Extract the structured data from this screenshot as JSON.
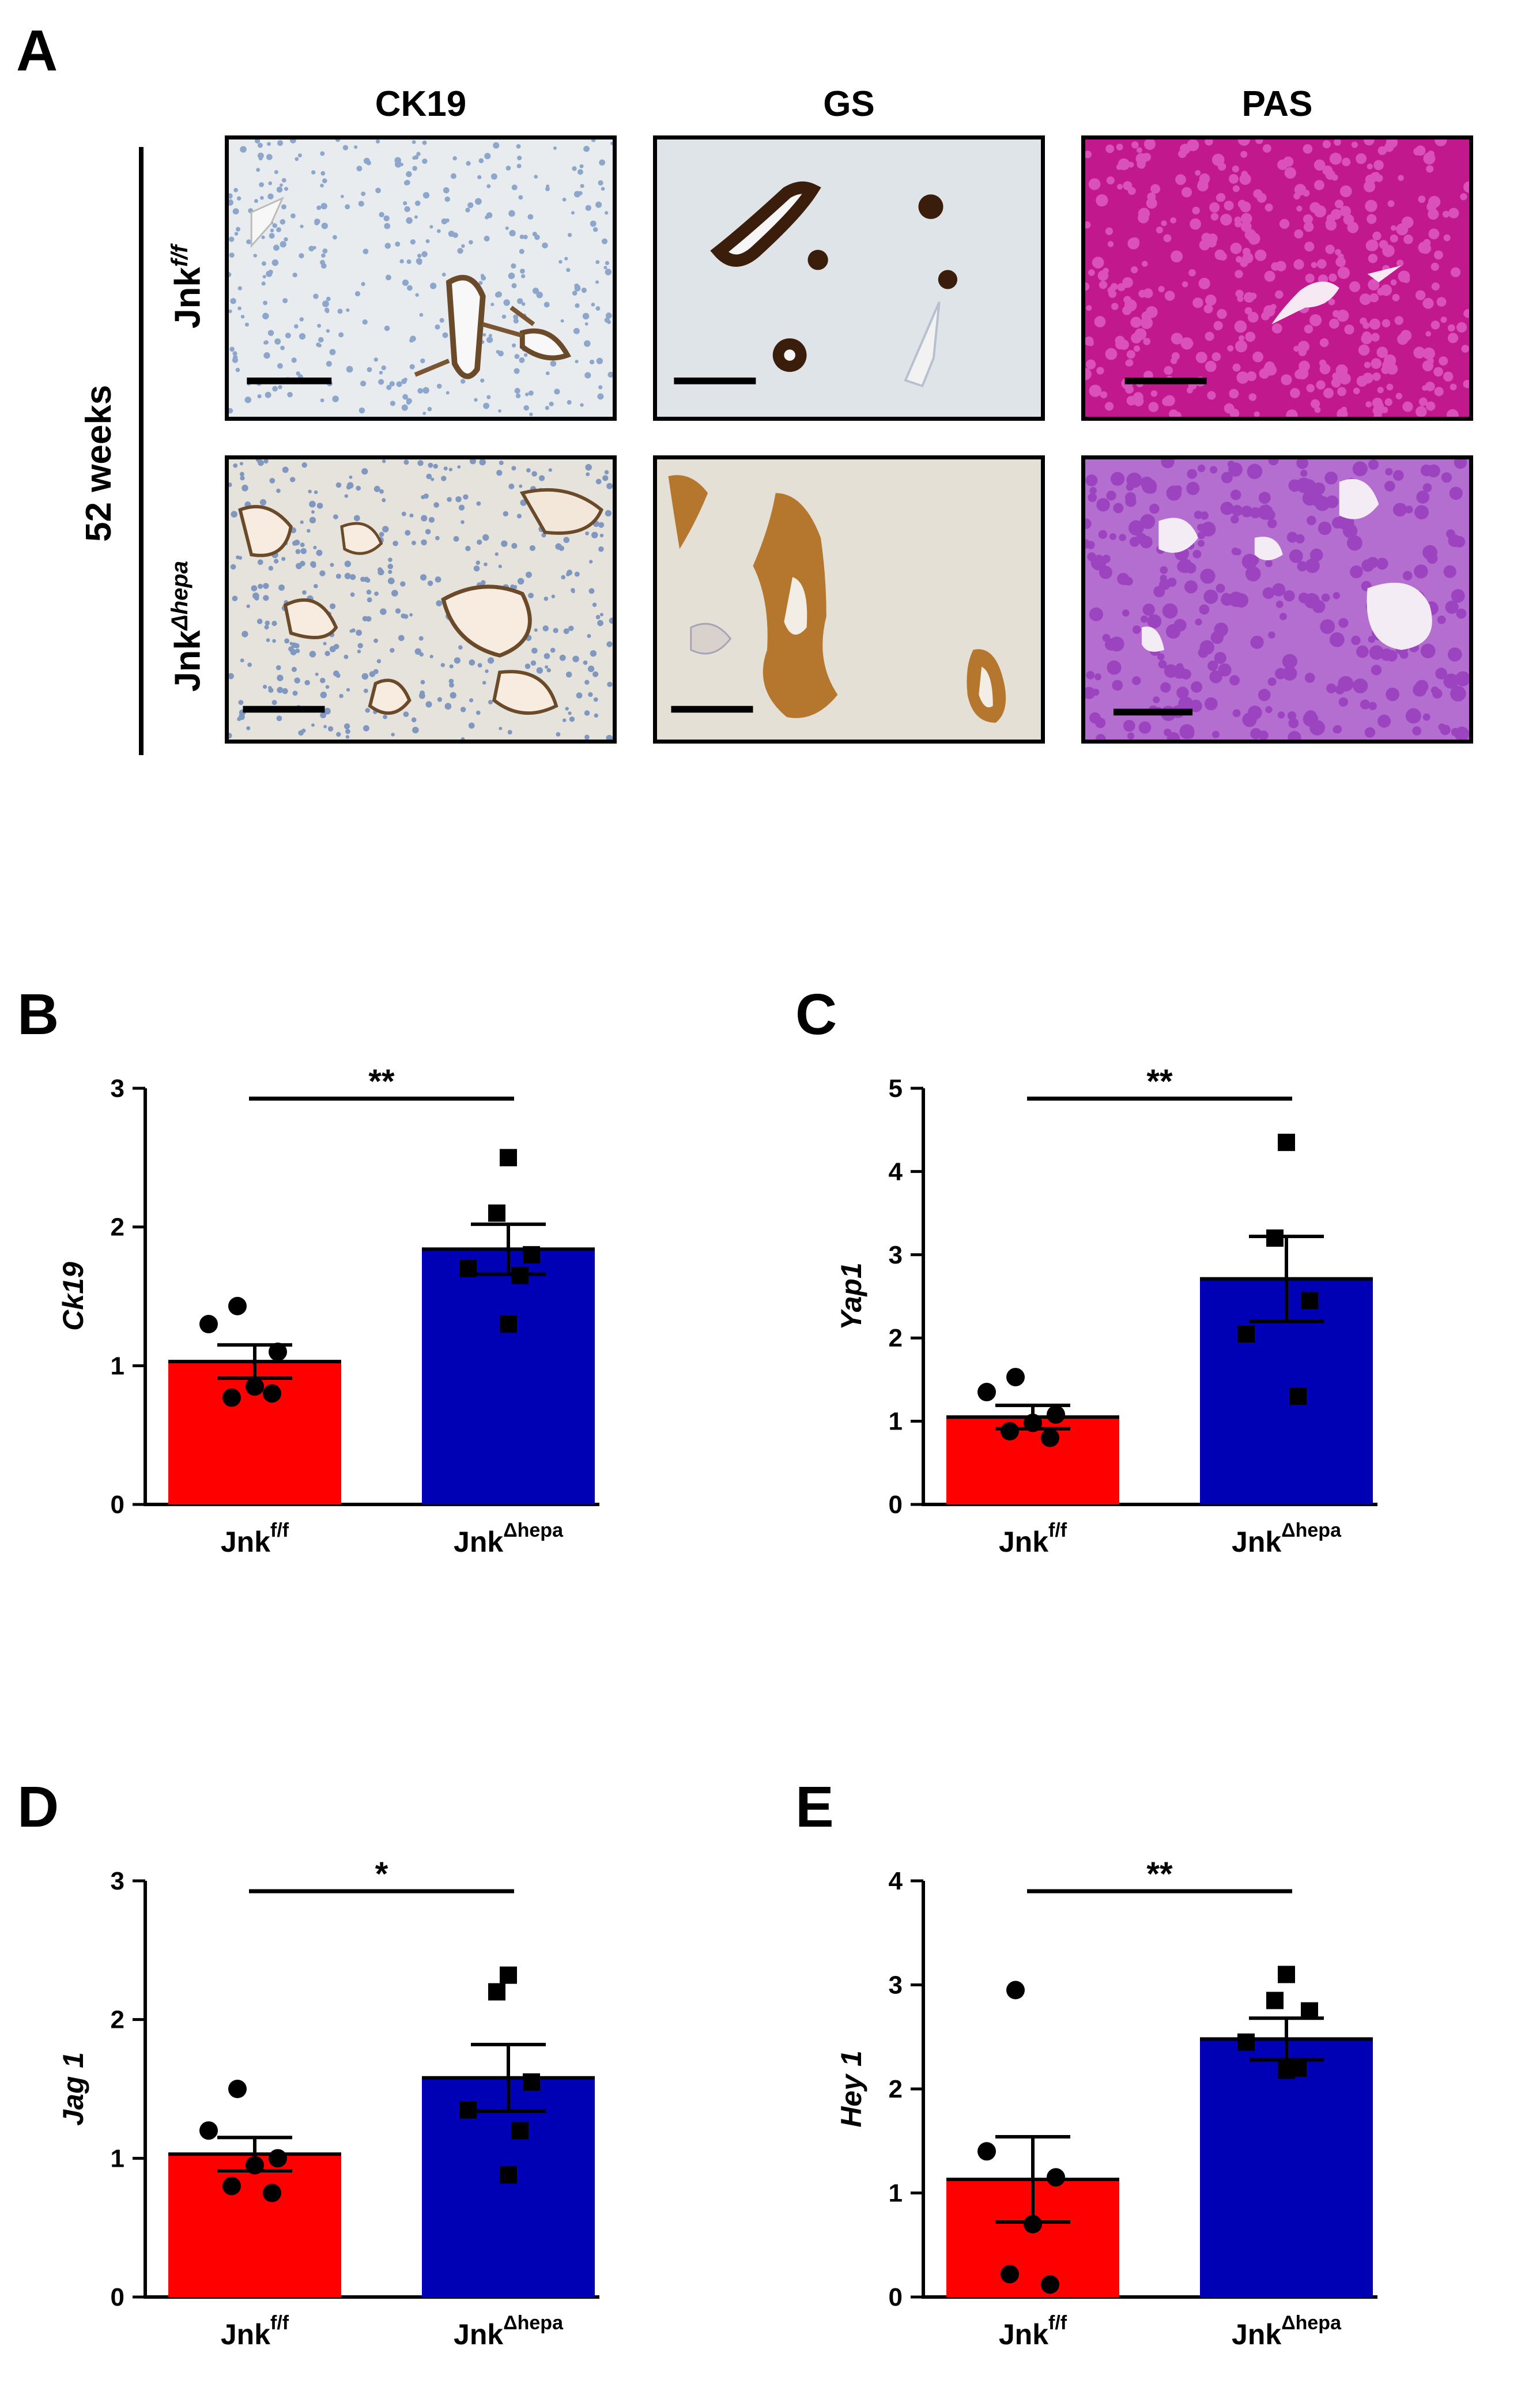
{
  "panels": {
    "A": {
      "letter": "A",
      "columns": [
        "CK19",
        "GS",
        "PAS"
      ],
      "group_label": "52 weeks",
      "rows": [
        {
          "base": "Jnk",
          "sup": "f/f"
        },
        {
          "base": "Jnk",
          "sup": "Δhepa"
        }
      ]
    }
  },
  "colors": {
    "control": "#ff0000",
    "knockout": "#0000b4",
    "ck19_bg": "#e8ebee",
    "gs_bg": "#dfe4e8",
    "pas_bg": "#c2188e",
    "pas_ko_bg": "#b46ed0",
    "brown": "#8a5a28"
  },
  "chart_data": [
    {
      "letter": "B",
      "type": "bar",
      "ylabel": "Ck19",
      "ylim": [
        0,
        3
      ],
      "yticks": [
        "0",
        "1",
        "2",
        "3"
      ],
      "categories": [
        {
          "base": "Jnk",
          "sup": "f/f"
        },
        {
          "base": "Jnk",
          "sup": "Δhepa"
        }
      ],
      "means": [
        1.03,
        1.84
      ],
      "sem": [
        0.12,
        0.18
      ],
      "points": [
        [
          1.43,
          1.3,
          1.1,
          0.85,
          0.77,
          0.8
        ],
        [
          2.5,
          2.1,
          1.8,
          1.7,
          1.65,
          1.3
        ]
      ],
      "significance": "**"
    },
    {
      "letter": "C",
      "type": "bar",
      "ylabel": "Yap1",
      "ylim": [
        0,
        5
      ],
      "yticks": [
        "0",
        "1",
        "2",
        "3",
        "4",
        "5"
      ],
      "categories": [
        {
          "base": "Jnk",
          "sup": "f/f"
        },
        {
          "base": "Jnk",
          "sup": "Δhepa"
        }
      ],
      "means": [
        1.05,
        2.71
      ],
      "sem": [
        0.14,
        0.51
      ],
      "points": [
        [
          1.53,
          1.35,
          1.08,
          0.98,
          0.88,
          0.8
        ],
        [
          4.35,
          3.2,
          2.45,
          2.05,
          1.3
        ]
      ],
      "significance": "**"
    },
    {
      "letter": "D",
      "type": "bar",
      "ylabel": "Jag 1",
      "ylim": [
        0,
        3
      ],
      "yticks": [
        "0",
        "1",
        "2",
        "3"
      ],
      "categories": [
        {
          "base": "Jnk",
          "sup": "f/f"
        },
        {
          "base": "Jnk",
          "sup": "Δhepa"
        }
      ],
      "means": [
        1.03,
        1.58
      ],
      "sem": [
        0.12,
        0.24
      ],
      "points": [
        [
          1.5,
          1.2,
          1.0,
          0.95,
          0.8,
          0.75
        ],
        [
          2.32,
          2.2,
          1.55,
          1.35,
          1.2,
          0.88
        ]
      ],
      "significance": "*"
    },
    {
      "letter": "E",
      "type": "bar",
      "ylabel": "Hey 1",
      "ylim": [
        0,
        4
      ],
      "yticks": [
        "0",
        "1",
        "2",
        "3",
        "4"
      ],
      "categories": [
        {
          "base": "Jnk",
          "sup": "f/f"
        },
        {
          "base": "Jnk",
          "sup": "Δhepa"
        }
      ],
      "means": [
        1.13,
        2.48
      ],
      "sem": [
        0.41,
        0.2
      ],
      "points": [
        [
          2.95,
          1.4,
          1.15,
          0.7,
          0.22,
          0.12
        ],
        [
          3.1,
          2.85,
          2.75,
          2.45,
          2.2,
          2.18
        ]
      ],
      "significance": "**"
    }
  ]
}
